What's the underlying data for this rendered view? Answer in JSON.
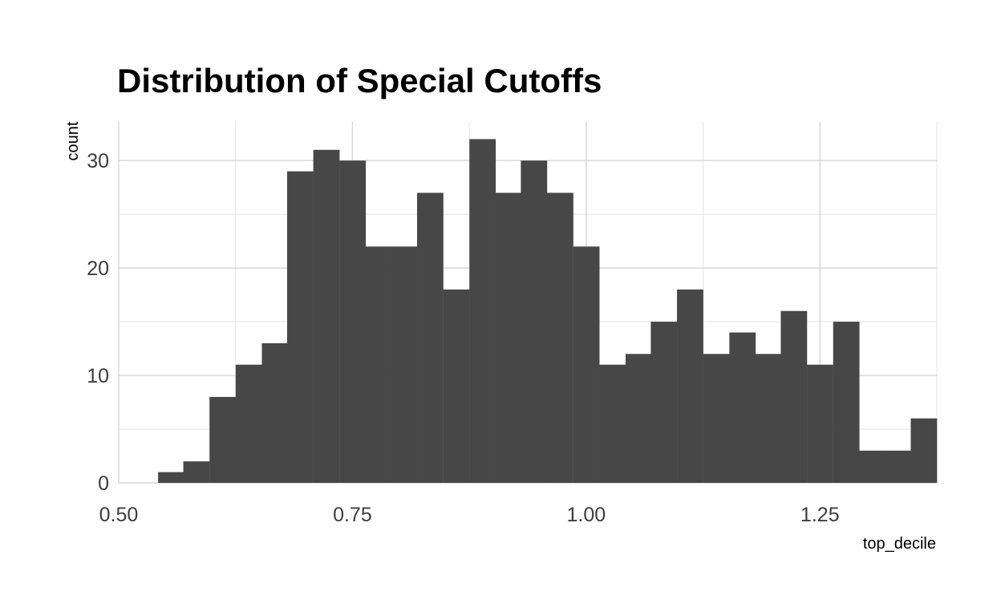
{
  "chart_data": {
    "type": "bar",
    "title": "Distribution of Special Cutoffs",
    "xlabel": "top_decile",
    "ylabel": "count",
    "bin_width": 0.0278,
    "bins": [
      {
        "x": 0.556,
        "count": 1
      },
      {
        "x": 0.583,
        "count": 2
      },
      {
        "x": 0.611,
        "count": 8
      },
      {
        "x": 0.639,
        "count": 11
      },
      {
        "x": 0.667,
        "count": 13
      },
      {
        "x": 0.694,
        "count": 29
      },
      {
        "x": 0.722,
        "count": 31
      },
      {
        "x": 0.75,
        "count": 30
      },
      {
        "x": 0.778,
        "count": 22
      },
      {
        "x": 0.806,
        "count": 22
      },
      {
        "x": 0.833,
        "count": 27
      },
      {
        "x": 0.861,
        "count": 18
      },
      {
        "x": 0.889,
        "count": 32
      },
      {
        "x": 0.917,
        "count": 27
      },
      {
        "x": 0.944,
        "count": 30
      },
      {
        "x": 0.972,
        "count": 27
      },
      {
        "x": 1.0,
        "count": 22
      },
      {
        "x": 1.028,
        "count": 11
      },
      {
        "x": 1.056,
        "count": 12
      },
      {
        "x": 1.083,
        "count": 15
      },
      {
        "x": 1.111,
        "count": 18
      },
      {
        "x": 1.139,
        "count": 12
      },
      {
        "x": 1.167,
        "count": 14
      },
      {
        "x": 1.194,
        "count": 12
      },
      {
        "x": 1.222,
        "count": 16
      },
      {
        "x": 1.25,
        "count": 11
      },
      {
        "x": 1.278,
        "count": 15
      },
      {
        "x": 1.306,
        "count": 3
      },
      {
        "x": 1.333,
        "count": 3
      },
      {
        "x": 1.361,
        "count": 6
      }
    ],
    "xlim": [
      0.5,
      1.375
    ],
    "ylim": [
      0,
      33.6
    ],
    "x_ticks": [
      "0.50",
      "0.75",
      "1.00",
      "1.25"
    ],
    "y_ticks": [
      "0",
      "10",
      "20",
      "30"
    ],
    "grid": true,
    "bar_color": "#474747"
  }
}
